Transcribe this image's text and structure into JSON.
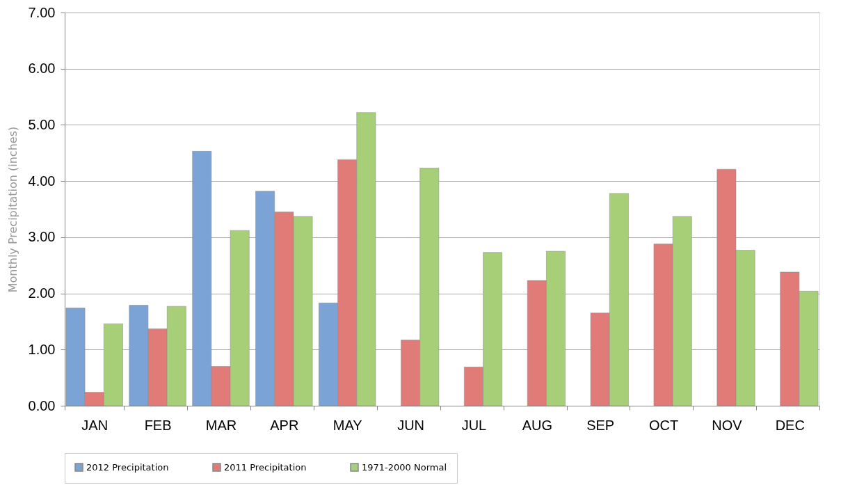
{
  "chart_data": {
    "type": "bar",
    "ylabel": "Monthly Precipitation (inches)",
    "categories": [
      "JAN",
      "FEB",
      "MAR",
      "APR",
      "MAY",
      "JUN",
      "JUL",
      "AUG",
      "SEP",
      "OCT",
      "NOV",
      "DEC"
    ],
    "series": [
      {
        "name": "2012 Precipitation",
        "color": "#7ba3d6",
        "values": [
          1.74,
          1.79,
          4.53,
          3.82,
          1.83,
          null,
          null,
          null,
          null,
          null,
          null,
          null
        ]
      },
      {
        "name": "2011 Precipitation",
        "color": "#e07b78",
        "values": [
          0.24,
          1.37,
          0.7,
          3.45,
          4.38,
          1.17,
          0.69,
          2.23,
          1.65,
          2.88,
          4.21,
          2.38
        ]
      },
      {
        "name": "1971-2000 Normal",
        "color": "#a6cf78",
        "values": [
          1.46,
          1.77,
          3.12,
          3.37,
          5.22,
          4.23,
          2.73,
          2.75,
          3.78,
          3.37,
          2.77,
          2.04
        ]
      }
    ],
    "ylim": [
      0,
      7
    ],
    "yticks": [
      {
        "value": 0,
        "label": "0.00"
      },
      {
        "value": 1,
        "label": "1.00"
      },
      {
        "value": 2,
        "label": "2.00"
      },
      {
        "value": 3,
        "label": "3.00"
      },
      {
        "value": 4,
        "label": "4.00"
      },
      {
        "value": 5,
        "label": "5.00"
      },
      {
        "value": 6,
        "label": "6.00"
      },
      {
        "value": 7,
        "label": "7.00"
      }
    ],
    "grid": "y",
    "legend": "bottom"
  }
}
